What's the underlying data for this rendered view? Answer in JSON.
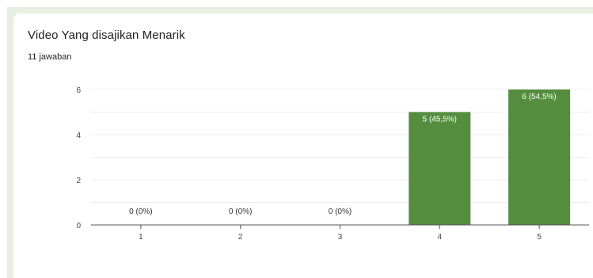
{
  "header": {
    "title": "Video Yang disajikan Menarik",
    "response_count": "11 jawaban"
  },
  "colors": {
    "bar": "#548d3e",
    "frame": "#e6efe2",
    "gridline": "#ececec",
    "axis": "#555555"
  },
  "chart_data": {
    "type": "bar",
    "title": "Video Yang disajikan Menarik",
    "categories": [
      "1",
      "2",
      "3",
      "4",
      "5"
    ],
    "values": [
      0,
      0,
      0,
      5,
      6
    ],
    "data_labels": [
      "0 (0%)",
      "0 (0%)",
      "0 (0%)",
      "5 (45,5%)",
      "6 (54,5%)"
    ],
    "y_ticks": [
      0,
      2,
      4,
      6
    ],
    "ylim": [
      0,
      6
    ],
    "xlabel": "",
    "ylabel": "",
    "grid": true,
    "legend": "none"
  }
}
